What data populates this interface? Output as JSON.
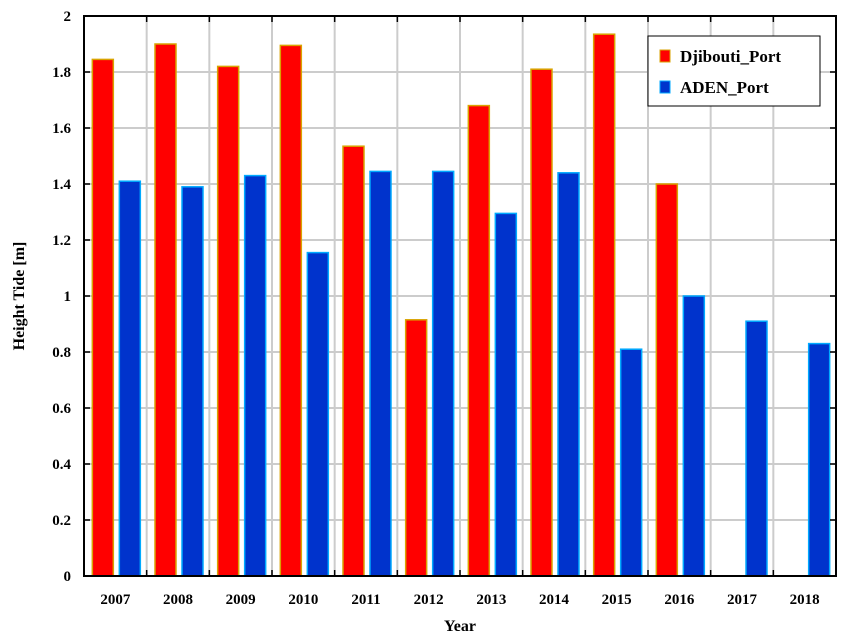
{
  "chart_data": {
    "type": "bar",
    "xlabel": "Year",
    "ylabel": "Height Tide [m]",
    "categories": [
      "2007",
      "2008",
      "2009",
      "2010",
      "2011",
      "2012",
      "2013",
      "2014",
      "2015",
      "2016",
      "2017",
      "2018"
    ],
    "ylim": [
      0,
      2
    ],
    "yticks": [
      "0",
      "0.2",
      "0.4",
      "0.6",
      "0.8",
      "1",
      "1.2",
      "1.4",
      "1.6",
      "1.8",
      "2"
    ],
    "grid": true,
    "legend_position": "top-right",
    "series": [
      {
        "name": "Djibouti_Port",
        "color": "#ff0000",
        "edge_color": "#d9a300",
        "values": [
          1.845,
          1.9,
          1.82,
          1.895,
          1.535,
          0.915,
          1.68,
          1.81,
          1.935,
          1.4,
          null,
          null
        ]
      },
      {
        "name": "ADEN_Port",
        "color": "#0033cc",
        "edge_color": "#00aaff",
        "values": [
          1.41,
          1.39,
          1.43,
          1.155,
          1.445,
          1.445,
          1.295,
          1.44,
          0.81,
          1.0,
          0.91,
          0.83
        ]
      }
    ]
  }
}
